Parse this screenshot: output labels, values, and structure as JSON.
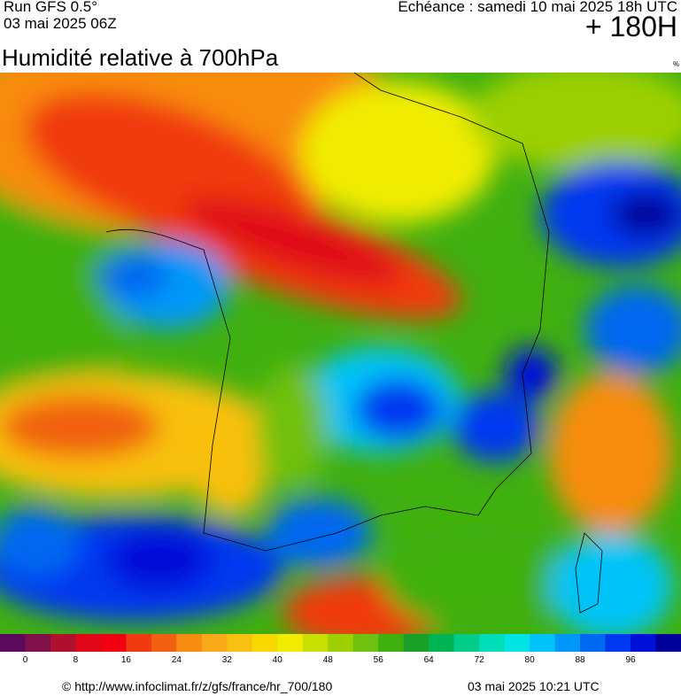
{
  "header": {
    "run": "Run GFS 0.5°",
    "run_date": "03 mai 2025 06Z",
    "echeance": "Echéance : samedi 10 mai 2025 18h UTC",
    "horizon": "+ 180H",
    "title": "Humidité relative à 700hPa",
    "unit": "%"
  },
  "legend": {
    "colors": [
      "#5a0a5a",
      "#80104a",
      "#b01030",
      "#e00818",
      "#f00010",
      "#f03a10",
      "#f06010",
      "#f88c10",
      "#f8a818",
      "#f8c010",
      "#f8d800",
      "#f0ec00",
      "#c8e000",
      "#9cd000",
      "#70c010",
      "#40b010",
      "#18a028",
      "#00b454",
      "#00cc88",
      "#00dcb8",
      "#00e4e4",
      "#00c4f8",
      "#0098f8",
      "#0068f0",
      "#0038f0",
      "#0010d8",
      "#00009a",
      "#000060",
      "#000018"
    ],
    "ticks": [
      0,
      8,
      16,
      24,
      32,
      40,
      48,
      56,
      64,
      72,
      80,
      88,
      96
    ]
  },
  "footer": {
    "source": "© http://www.infoclimat.fr/z/gfs/france/hr_700/180",
    "generated": "03 mai 2025 10:21 UTC"
  }
}
